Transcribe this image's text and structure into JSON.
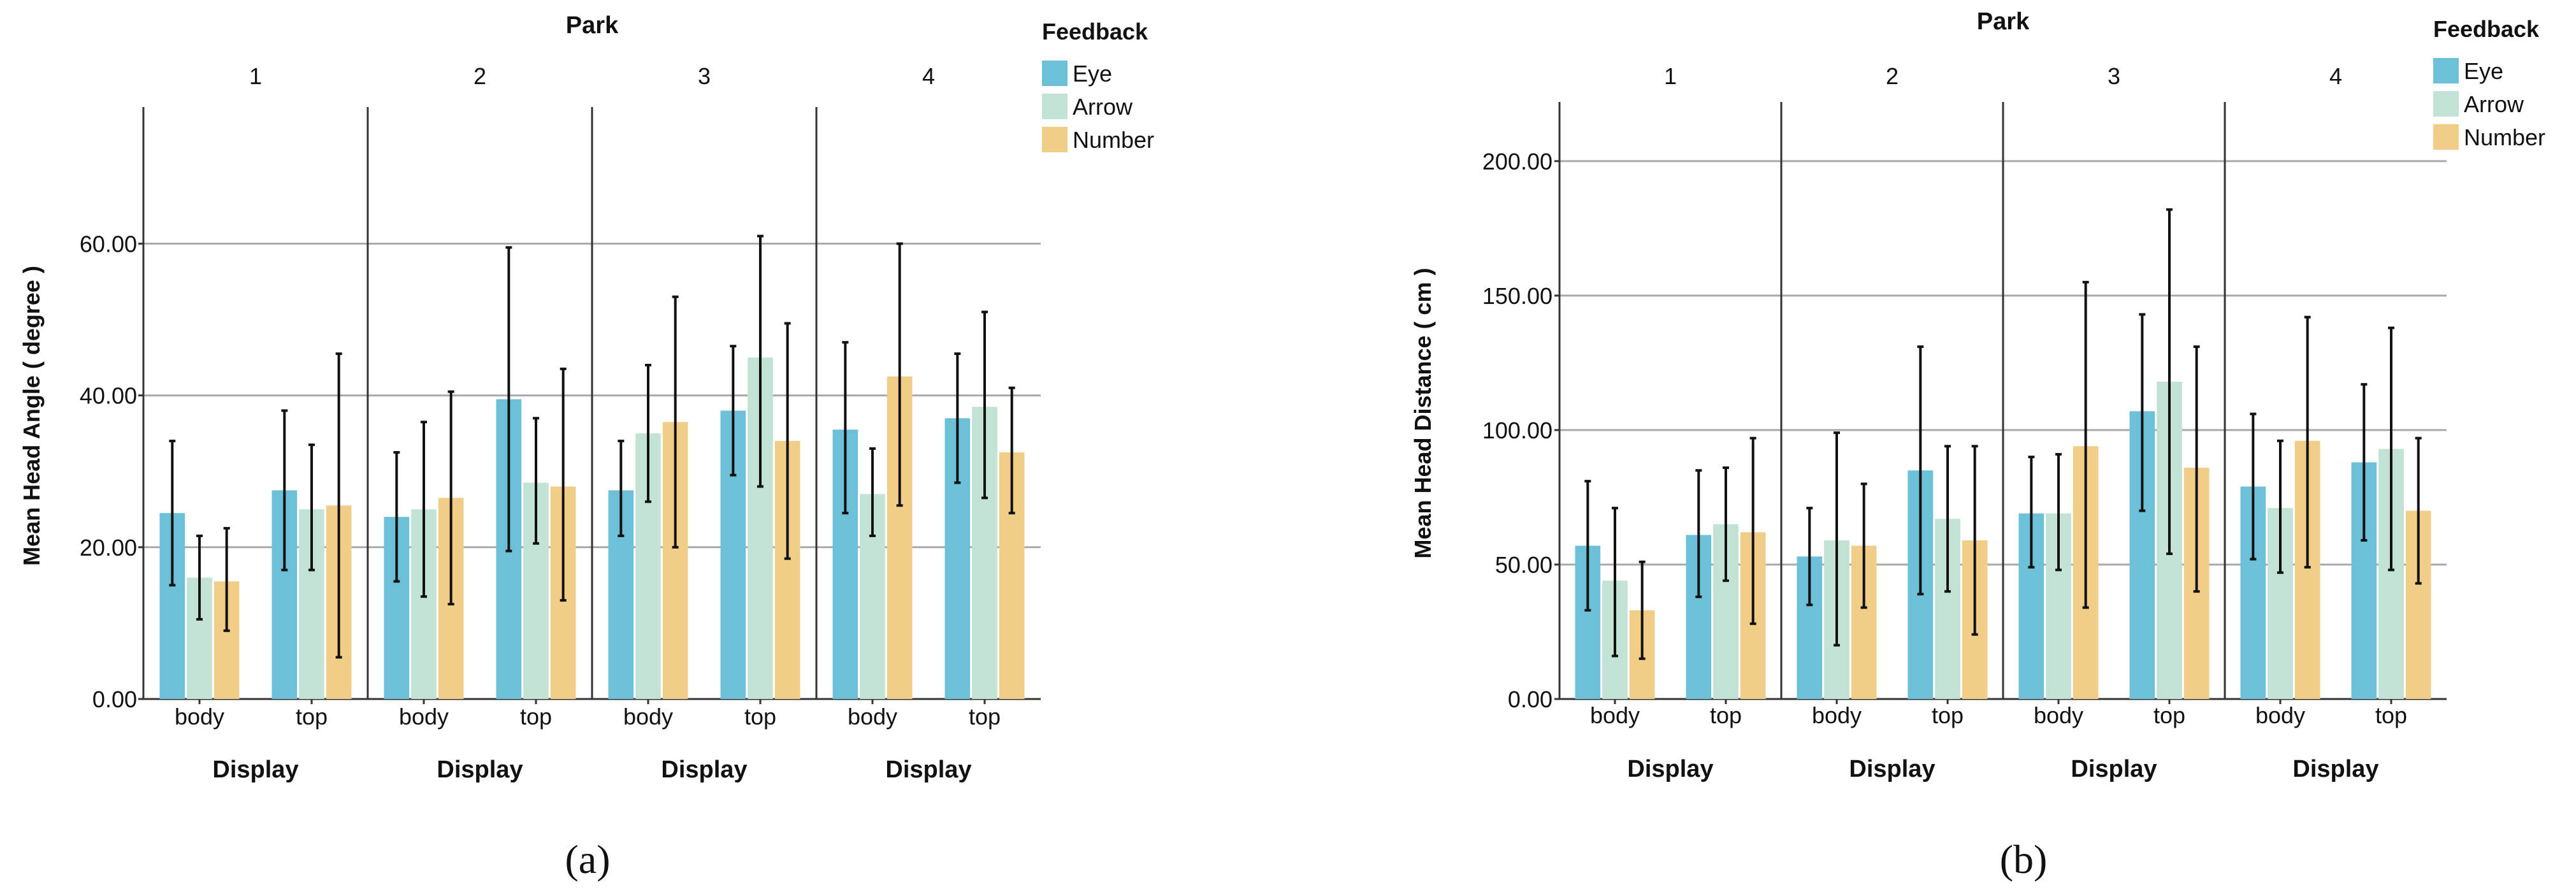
{
  "figure": {
    "panel_labels": [
      "(a)",
      "(b)"
    ]
  },
  "chart_data": [
    {
      "type": "bar",
      "panel": "(a)",
      "title": "Park",
      "facets": [
        "1",
        "2",
        "3",
        "4"
      ],
      "categories": [
        "body",
        "top"
      ],
      "xlabel": "Display",
      "ylabel": "Mean Head Angle ( degree )",
      "ylim": [
        0,
        78
      ],
      "yticks": [
        0,
        20,
        40,
        60
      ],
      "ytick_labels": [
        "0.00",
        "20.00",
        "40.00",
        "60.00"
      ],
      "gridlines": [
        20,
        40,
        60
      ],
      "legend": {
        "title": "Feedback",
        "position": "top-right",
        "entries": [
          "Eye",
          "Arrow",
          "Number"
        ]
      },
      "colors": {
        "Eye": "#6cc1d9",
        "Arrow": "#c2e3d4",
        "Number": "#f2cd88"
      },
      "series": [
        {
          "name": "Eye",
          "values": [
            [
              24.5,
              27.5
            ],
            [
              24.0,
              39.5
            ],
            [
              27.5,
              38.0
            ],
            [
              35.5,
              37.0
            ]
          ],
          "error_low": [
            [
              15.0,
              17.0
            ],
            [
              15.5,
              19.5
            ],
            [
              21.5,
              29.5
            ],
            [
              24.5,
              28.5
            ]
          ],
          "error_high": [
            [
              34.0,
              38.0
            ],
            [
              32.5,
              59.5
            ],
            [
              34.0,
              46.5
            ],
            [
              47.0,
              45.5
            ]
          ]
        },
        {
          "name": "Arrow",
          "values": [
            [
              16.0,
              25.0
            ],
            [
              25.0,
              28.5
            ],
            [
              35.0,
              45.0
            ],
            [
              27.0,
              38.5
            ]
          ],
          "error_low": [
            [
              10.5,
              17.0
            ],
            [
              13.5,
              20.5
            ],
            [
              26.0,
              28.0
            ],
            [
              21.5,
              26.5
            ]
          ],
          "error_high": [
            [
              21.5,
              33.5
            ],
            [
              36.5,
              37.0
            ],
            [
              44.0,
              61.0
            ],
            [
              33.0,
              51.0
            ]
          ]
        },
        {
          "name": "Number",
          "values": [
            [
              15.5,
              25.5
            ],
            [
              26.5,
              28.0
            ],
            [
              36.5,
              34.0
            ],
            [
              42.5,
              32.5
            ]
          ],
          "error_low": [
            [
              9.0,
              5.5
            ],
            [
              12.5,
              13.0
            ],
            [
              20.0,
              18.5
            ],
            [
              25.5,
              24.5
            ]
          ],
          "error_high": [
            [
              22.5,
              45.5
            ],
            [
              40.5,
              43.5
            ],
            [
              53.0,
              49.5
            ],
            [
              60.0,
              41.0
            ]
          ]
        }
      ]
    },
    {
      "type": "bar",
      "panel": "(b)",
      "title": "Park",
      "facets": [
        "1",
        "2",
        "3",
        "4"
      ],
      "categories": [
        "body",
        "top"
      ],
      "xlabel": "Display",
      "ylabel": "Mean Head Distance ( cm )",
      "ylim": [
        0,
        222
      ],
      "yticks": [
        0,
        50,
        100,
        150,
        200
      ],
      "ytick_labels": [
        "0.00",
        "50.00",
        "100.00",
        "150.00",
        "200.00"
      ],
      "gridlines": [
        50,
        100,
        150,
        200
      ],
      "legend": {
        "title": "Feedback",
        "position": "top-right",
        "entries": [
          "Eye",
          "Arrow",
          "Number"
        ]
      },
      "colors": {
        "Eye": "#6cc1d9",
        "Arrow": "#c2e3d4",
        "Number": "#f2cd88"
      },
      "series": [
        {
          "name": "Eye",
          "values": [
            [
              57,
              61
            ],
            [
              53,
              85
            ],
            [
              69,
              107
            ],
            [
              79,
              88
            ]
          ],
          "error_low": [
            [
              33,
              38
            ],
            [
              35,
              39
            ],
            [
              49,
              70
            ],
            [
              52,
              59
            ]
          ],
          "error_high": [
            [
              81,
              85
            ],
            [
              71,
              131
            ],
            [
              90,
              143
            ],
            [
              106,
              117
            ]
          ]
        },
        {
          "name": "Arrow",
          "values": [
            [
              44,
              65
            ],
            [
              59,
              67
            ],
            [
              69,
              118
            ],
            [
              71,
              93
            ]
          ],
          "error_low": [
            [
              16,
              44
            ],
            [
              20,
              40
            ],
            [
              48,
              54
            ],
            [
              47,
              48
            ]
          ],
          "error_high": [
            [
              71,
              86
            ],
            [
              99,
              94
            ],
            [
              91,
              182
            ],
            [
              96,
              138
            ]
          ]
        },
        {
          "name": "Number",
          "values": [
            [
              33,
              62
            ],
            [
              57,
              59
            ],
            [
              94,
              86
            ],
            [
              96,
              70
            ]
          ],
          "error_low": [
            [
              15,
              28
            ],
            [
              34,
              24
            ],
            [
              34,
              40
            ],
            [
              49,
              43
            ]
          ],
          "error_high": [
            [
              51,
              97
            ],
            [
              80,
              94
            ],
            [
              155,
              131
            ],
            [
              142,
              97
            ]
          ]
        }
      ]
    }
  ]
}
